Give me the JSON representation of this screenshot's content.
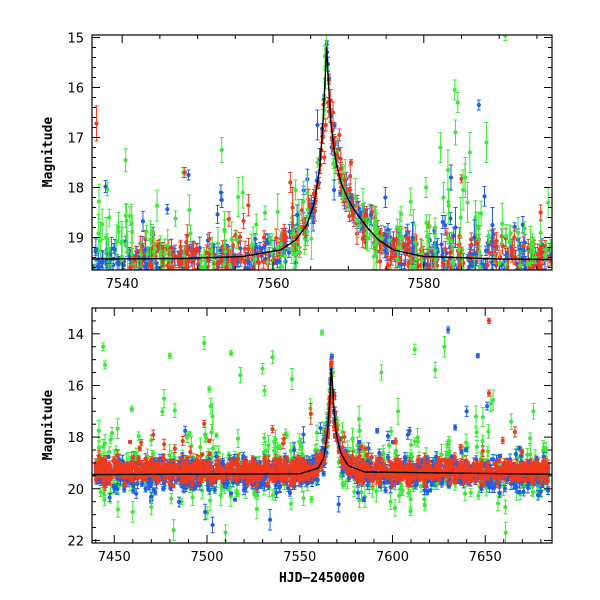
{
  "chart_data": [
    {
      "type": "scatter",
      "panel": "top",
      "title": "",
      "xlabel": "",
      "ylabel": "Magnitude",
      "xlim": [
        7536,
        7597
      ],
      "ylim": [
        19.65,
        14.95
      ],
      "y_inverted": true,
      "x_ticks": [
        7540,
        7560,
        7580
      ],
      "y_ticks": [
        15,
        16,
        17,
        18,
        19
      ],
      "colors": {
        "blue": "#1f5fe0",
        "red": "#f03a1e",
        "green": "#3ee83a",
        "model": "#000000"
      },
      "model_curve": [
        [
          7536,
          19.43
        ],
        [
          7548,
          19.42
        ],
        [
          7556,
          19.38
        ],
        [
          7561,
          19.25
        ],
        [
          7563,
          19.05
        ],
        [
          7564.5,
          18.75
        ],
        [
          7565.5,
          18.3
        ],
        [
          7566.2,
          17.6
        ],
        [
          7566.6,
          16.8
        ],
        [
          7566.9,
          15.9
        ],
        [
          7567.1,
          15.15
        ],
        [
          7567.35,
          15.9
        ],
        [
          7567.7,
          16.75
        ],
        [
          7568.3,
          17.45
        ],
        [
          7569.0,
          17.9
        ],
        [
          7570.0,
          18.25
        ],
        [
          7571.0,
          18.5
        ],
        [
          7572.5,
          18.8
        ],
        [
          7574,
          19.05
        ],
        [
          7576,
          19.25
        ],
        [
          7580,
          19.38
        ],
        [
          7590,
          19.43
        ],
        [
          7597,
          19.44
        ]
      ],
      "highlight_points": {
        "red": [
          [
            7536.6,
            16.72,
            0.35
          ],
          [
            7548.3,
            17.7,
            0.1
          ],
          [
            7562.6,
            18.4,
            0.4
          ],
          [
            7566.4,
            17.25,
            0.15
          ],
          [
            7566.6,
            17.0,
            0.12
          ],
          [
            7566.8,
            17.4,
            0.12
          ],
          [
            7567.0,
            16.75,
            0.12
          ],
          [
            7567.3,
            16.3,
            0.1
          ],
          [
            7567.6,
            16.55,
            0.12
          ],
          [
            7567.9,
            16.85,
            0.12
          ],
          [
            7568.2,
            17.1,
            0.12
          ],
          [
            7568.5,
            17.35,
            0.12
          ],
          [
            7569.0,
            17.62,
            0.12
          ],
          [
            7569.5,
            17.85,
            0.12
          ],
          [
            7570.2,
            18.05,
            0.12
          ],
          [
            7568.8,
            16.95,
            0.12
          ],
          [
            7564.3,
            18.8,
            0.2
          ],
          [
            7562.3,
            17.9,
            0.2
          ],
          [
            7595.5,
            18.5,
            0.15
          ],
          [
            7592,
            19.0,
            0.2
          ]
        ],
        "blue": [
          [
            7537.8,
            17.98,
            0.12
          ],
          [
            7553.1,
            18.1,
            0.15
          ],
          [
            7553.2,
            18.25,
            0.15
          ],
          [
            7548.8,
            17.75,
            0.1
          ],
          [
            7565.9,
            16.75,
            0.3
          ],
          [
            7563.2,
            18.55,
            0.2
          ],
          [
            7568.1,
            18.05,
            0.2
          ],
          [
            7570.3,
            18.2,
            0.15
          ],
          [
            7574.9,
            18.2,
            0.2
          ],
          [
            7583.6,
            17.8,
            0.25
          ],
          [
            7584.2,
            18.8,
            0.4
          ],
          [
            7586.7,
            19.0,
            0.35
          ],
          [
            7587.3,
            16.35,
            0.1
          ],
          [
            7589.1,
            18.75,
            0.35
          ],
          [
            7578.5,
            19.0,
            0.3
          ],
          [
            7573,
            18.55,
            0.2
          ]
        ],
        "green": [
          [
            7548.1,
            17.7,
            0.1
          ],
          [
            7553.2,
            17.25,
            0.25
          ],
          [
            7548.9,
            18.45,
            0.3
          ],
          [
            7582.2,
            17.2,
            0.3
          ],
          [
            7582.6,
            18.2,
            0.3
          ],
          [
            7583.2,
            17.65,
            0.4
          ],
          [
            7584.1,
            16.05,
            0.2
          ],
          [
            7584.5,
            16.3,
            0.2
          ],
          [
            7584.2,
            16.9,
            0.25
          ],
          [
            7585.5,
            17.8,
            0.4
          ],
          [
            7585.8,
            18.3,
            0.4
          ],
          [
            7586.1,
            17.3,
            0.4
          ],
          [
            7588.3,
            17.1,
            0.4
          ],
          [
            7584.9,
            18.6,
            0.4
          ],
          [
            7590.8,
            14.96,
            0.1
          ],
          [
            7596.5,
            18.3,
            0.3
          ],
          [
            7580.3,
            18.0,
            0.2
          ],
          [
            7592.5,
            18.9,
            0.3
          ],
          [
            7563,
            18.05,
            0.2
          ],
          [
            7539.5,
            18.8,
            0.3
          ],
          [
            7585.2,
            18.05,
            0.4
          ]
        ]
      },
      "point_series": [
        {
          "color": "blue",
          "x_range": [
            7536,
            7597
          ],
          "weight": 1.0,
          "base": 19.42,
          "scatter": 0.18
        },
        {
          "color": "red",
          "x_range": [
            7541,
            7597
          ],
          "weight": 0.8,
          "base": 19.38,
          "scatter": 0.22
        },
        {
          "color": "green",
          "x_range": [
            7536,
            7597
          ],
          "weight": 0.45,
          "base": 19.2,
          "scatter": 0.35
        }
      ]
    },
    {
      "type": "scatter",
      "panel": "bottom",
      "title": "",
      "xlabel": "HJD−2450000",
      "ylabel": "Magnitude",
      "xlim": [
        7438,
        7686
      ],
      "ylim": [
        22.1,
        13.0
      ],
      "y_inverted": true,
      "x_ticks": [
        7450,
        7500,
        7550,
        7600,
        7650
      ],
      "y_ticks": [
        14,
        16,
        18,
        20,
        22
      ],
      "colors": {
        "blue": "#1f5fe0",
        "red": "#f03a1e",
        "green": "#3ee83a",
        "model": "#000000"
      },
      "model_curve": [
        [
          7438,
          19.45
        ],
        [
          7550,
          19.42
        ],
        [
          7560,
          19.2
        ],
        [
          7563,
          18.8
        ],
        [
          7565,
          17.8
        ],
        [
          7566.3,
          16.5
        ],
        [
          7567.1,
          15.1
        ],
        [
          7568,
          16.5
        ],
        [
          7569.5,
          17.8
        ],
        [
          7572,
          18.6
        ],
        [
          7576,
          19.1
        ],
        [
          7585,
          19.35
        ],
        [
          7686,
          19.44
        ]
      ],
      "highlight_points": {
        "green": [
          [
            7444,
            14.5,
            0.15
          ],
          [
            7445,
            15.2,
            0.15
          ],
          [
            7480,
            14.85,
            0.1
          ],
          [
            7513,
            14.75,
            0.1
          ],
          [
            7518,
            15.6,
            0.3
          ],
          [
            7530,
            15.35,
            0.2
          ],
          [
            7531,
            16.2,
            0.2
          ],
          [
            7562,
            13.95,
            0.1
          ],
          [
            7582,
            17.3,
            0.5
          ],
          [
            7594,
            15.5,
            0.3
          ],
          [
            7603,
            17.0,
            0.5
          ],
          [
            7612,
            14.6,
            0.2
          ],
          [
            7623,
            15.4,
            0.3
          ],
          [
            7628,
            14.5,
            0.4
          ],
          [
            7645,
            17.2,
            0.4
          ],
          [
            7653,
            16.7,
            0.3
          ],
          [
            7664,
            17.4,
            0.3
          ],
          [
            7676,
            17.0,
            0.3
          ],
          [
            7661,
            21.7,
            0.4
          ],
          [
            7482,
            21.6,
            0.4
          ],
          [
            7510,
            21.7,
            0.3
          ],
          [
            7470,
            20.7,
            0.3
          ],
          [
            7460,
            20.9,
            0.4
          ],
          [
            7503,
            17.2,
            0.5
          ],
          [
            7499,
            17.9,
            0.3
          ],
          [
            7502,
            16.8,
            0.3
          ],
          [
            7448,
            18.1,
            0.15
          ],
          [
            7452,
            20.8,
            0.3
          ],
          [
            7599,
            20.5,
            0.3
          ],
          [
            7610,
            18.3,
            0.2
          ]
        ],
        "blue": [
          [
            7630,
            13.85,
            0.12
          ],
          [
            7646,
            14.85,
            0.08
          ],
          [
            7651,
            16.8,
            0.15
          ],
          [
            7640,
            17.0,
            0.2
          ],
          [
            7547,
            18.5,
            0.3
          ],
          [
            7534,
            21.2,
            0.4
          ],
          [
            7499,
            20.9,
            0.3
          ],
          [
            7503,
            21.4,
            0.3
          ],
          [
            7571,
            20.6,
            0.3
          ],
          [
            7552,
            17.9,
            0.3
          ]
        ],
        "red": [
          [
            7652,
            13.5,
            0.1
          ],
          [
            7652,
            16.3,
            0.12
          ],
          [
            7556,
            17.1,
            0.4
          ],
          [
            7541,
            18.25,
            0.2
          ],
          [
            7574,
            18.0,
            0.2
          ],
          [
            7666,
            17.8,
            0.2
          ],
          [
            7603,
            18.9,
            0.2
          ],
          [
            7567.5,
            16.7,
            0.15
          ],
          [
            7566,
            17.4,
            0.15
          ],
          [
            7568.5,
            17.6,
            0.15
          ],
          [
            7565,
            18.0,
            0.2
          ],
          [
            7564,
            17.8,
            0.25
          ]
        ]
      },
      "point_series": [
        {
          "color": "green",
          "x_range": [
            7440,
            7684
          ],
          "weight": 0.55,
          "base": 19.3,
          "scatter": 0.6
        },
        {
          "color": "blue",
          "x_range": [
            7440,
            7684
          ],
          "weight": 1.0,
          "base": 19.45,
          "scatter": 0.3
        },
        {
          "color": "red",
          "x_range": [
            7440,
            7684
          ],
          "weight": 1.1,
          "base": 19.3,
          "scatter": 0.22
        }
      ]
    }
  ]
}
